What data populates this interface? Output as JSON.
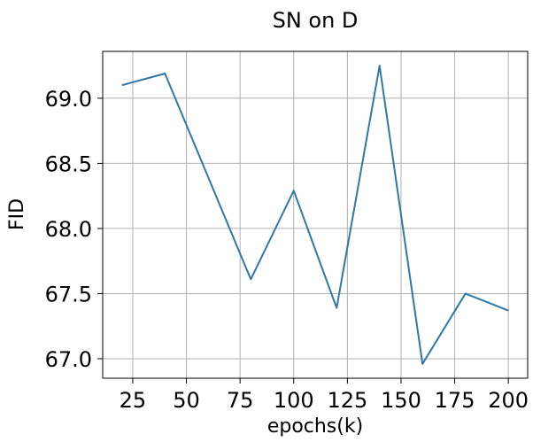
{
  "chart_data": {
    "type": "line",
    "title": "SN on D",
    "xlabel": "epochs(k)",
    "ylabel": "FID",
    "x": [
      20,
      40,
      60,
      80,
      100,
      120,
      140,
      160,
      180,
      200
    ],
    "series": [
      {
        "values": [
          69.1,
          69.19,
          68.4,
          67.61,
          68.29,
          67.39,
          69.25,
          66.96,
          67.5,
          67.37
        ],
        "color": "#2f78a8"
      }
    ],
    "xticks": [
      25,
      50,
      75,
      100,
      125,
      150,
      175,
      200
    ],
    "yticks": [
      67.0,
      67.5,
      68.0,
      68.5,
      69.0
    ],
    "xlim": [
      11,
      209
    ],
    "ylim": [
      66.85,
      69.36
    ],
    "grid": true
  }
}
